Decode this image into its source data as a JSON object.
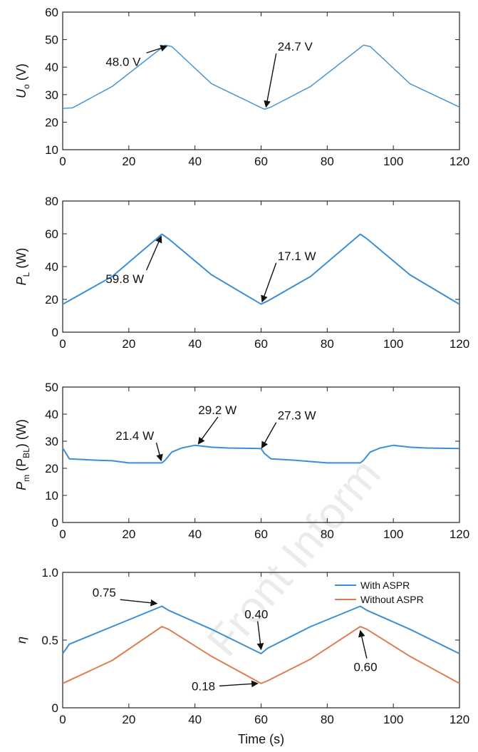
{
  "watermark": "Front Inform",
  "colors": {
    "with_aspr": "#3a8fd6",
    "without_aspr": "#e07d50",
    "axis": "#222222"
  },
  "chart_data": [
    {
      "type": "line",
      "ylabel_main": "U",
      "ylabel_sub": "o",
      "ylabel_unit": " (V)",
      "xlim": [
        0,
        120
      ],
      "ylim": [
        10,
        60
      ],
      "xticks": [
        0,
        20,
        40,
        60,
        80,
        100,
        120
      ],
      "yticks": [
        10,
        20,
        30,
        40,
        50,
        60
      ],
      "series": [
        {
          "color_key": "with_aspr",
          "points": [
            [
              0,
              25
            ],
            [
              3,
              25.2
            ],
            [
              15,
              33
            ],
            [
              31,
              48
            ],
            [
              33,
              47.5
            ],
            [
              45,
              34
            ],
            [
              61,
              24.7
            ],
            [
              63,
              25.5
            ],
            [
              75,
              33
            ],
            [
              91,
              48
            ],
            [
              93,
              47.5
            ],
            [
              105,
              34
            ],
            [
              120,
              25.5
            ]
          ]
        }
      ],
      "annotations": [
        {
          "text": "48.0 V",
          "tx": 13,
          "ty": 40.5,
          "ax": 31.5,
          "ay": 47.6
        },
        {
          "text": "24.7 V",
          "tx": 65,
          "ty": 46,
          "ax": 61.5,
          "ay": 25.5
        }
      ]
    },
    {
      "type": "line",
      "ylabel_main": "P",
      "ylabel_sub": "L",
      "ylabel_unit": " (W)",
      "xlim": [
        0,
        120
      ],
      "ylim": [
        0,
        80
      ],
      "xticks": [
        0,
        20,
        40,
        60,
        80,
        100,
        120
      ],
      "yticks": [
        0,
        20,
        40,
        60,
        80
      ],
      "series": [
        {
          "color_key": "with_aspr",
          "points": [
            [
              0,
              17
            ],
            [
              15,
              34
            ],
            [
              30,
              59.8
            ],
            [
              32,
              57
            ],
            [
              45,
              35
            ],
            [
              60,
              17.1
            ],
            [
              62,
              19
            ],
            [
              75,
              34
            ],
            [
              90,
              59.8
            ],
            [
              92,
              57
            ],
            [
              105,
              35
            ],
            [
              120,
              17
            ]
          ]
        }
      ],
      "annotations": [
        {
          "text": "59.8 W",
          "tx": 13,
          "ty": 30,
          "ax": 29.8,
          "ay": 58.5
        },
        {
          "text": "17.1 W",
          "tx": 65,
          "ty": 44,
          "ax": 60.3,
          "ay": 18.5
        }
      ]
    },
    {
      "type": "line",
      "ylabel_main": "P",
      "ylabel_sub": "m",
      "ylabel_unit": " (P",
      "ylabel_sub2": "BL",
      "ylabel_unit2": ") (W)",
      "xlim": [
        0,
        120
      ],
      "ylim": [
        0,
        50
      ],
      "xticks": [
        0,
        20,
        40,
        60,
        80,
        100,
        120
      ],
      "yticks": [
        0,
        10,
        20,
        30,
        40,
        50
      ],
      "series": [
        {
          "color_key": "with_aspr",
          "points": [
            [
              0,
              27.5
            ],
            [
              2,
              23.5
            ],
            [
              10,
              23
            ],
            [
              15,
              22.8
            ],
            [
              20,
              22
            ],
            [
              25,
              22
            ],
            [
              30,
              22
            ],
            [
              31,
              23
            ],
            [
              33,
              26
            ],
            [
              36,
              27.5
            ],
            [
              40,
              28.5
            ],
            [
              45,
              27.8
            ],
            [
              50,
              27.5
            ],
            [
              60,
              27.3
            ],
            [
              61,
              25.5
            ],
            [
              63,
              23.5
            ],
            [
              70,
              23
            ],
            [
              80,
              22
            ],
            [
              90,
              22
            ],
            [
              91,
              23
            ],
            [
              93,
              26
            ],
            [
              96,
              27.5
            ],
            [
              100,
              28.5
            ],
            [
              105,
              27.8
            ],
            [
              110,
              27.5
            ],
            [
              120,
              27.3
            ]
          ]
        }
      ],
      "annotations": [
        {
          "text": "21.4 W",
          "tx": 16,
          "ty": 30.5,
          "ax": 29.8,
          "ay": 22.8
        },
        {
          "text": "29.2 W",
          "tx": 41,
          "ty": 40,
          "ax": 41,
          "ay": 29
        },
        {
          "text": "27.3 W",
          "tx": 65,
          "ty": 38,
          "ax": 60.2,
          "ay": 27.5
        }
      ]
    },
    {
      "type": "line",
      "ylabel_main": "η",
      "ylabel_sub": "",
      "ylabel_unit": "",
      "xlim": [
        0,
        120
      ],
      "ylim": [
        0,
        1.0
      ],
      "xticks": [
        0,
        20,
        40,
        60,
        80,
        100,
        120
      ],
      "yticks": [
        0,
        0.5,
        1.0
      ],
      "ytick_labels": [
        "0",
        "0.5",
        "1.0"
      ],
      "xlabel": "Time (s)",
      "legend": [
        {
          "name": "With ASPR",
          "color_key": "with_aspr"
        },
        {
          "name": "Without ASPR",
          "color_key": "without_aspr"
        }
      ],
      "series": [
        {
          "name": "With ASPR",
          "color_key": "with_aspr",
          "points": [
            [
              0,
              0.4
            ],
            [
              2,
              0.47
            ],
            [
              15,
              0.6
            ],
            [
              30,
              0.75
            ],
            [
              32,
              0.72
            ],
            [
              45,
              0.58
            ],
            [
              60,
              0.4
            ],
            [
              62,
              0.44
            ],
            [
              75,
              0.6
            ],
            [
              90,
              0.75
            ],
            [
              92,
              0.72
            ],
            [
              105,
              0.58
            ],
            [
              120,
              0.4
            ]
          ]
        },
        {
          "name": "Without ASPR",
          "color_key": "without_aspr",
          "points": [
            [
              0,
              0.18
            ],
            [
              15,
              0.35
            ],
            [
              30,
              0.6
            ],
            [
              32,
              0.58
            ],
            [
              45,
              0.38
            ],
            [
              60,
              0.18
            ],
            [
              62,
              0.2
            ],
            [
              75,
              0.36
            ],
            [
              90,
              0.6
            ],
            [
              92,
              0.58
            ],
            [
              105,
              0.38
            ],
            [
              120,
              0.18
            ]
          ]
        }
      ],
      "annotations": [
        {
          "text": "0.75",
          "tx": 9,
          "ty": 0.82,
          "ax": 28.5,
          "ay": 0.77
        },
        {
          "text": "0.40",
          "tx": 55,
          "ty": 0.66,
          "ax": 60,
          "ay": 0.43
        },
        {
          "text": "0.60",
          "tx": 88,
          "ty": 0.27,
          "ax": 90,
          "ay": 0.57
        },
        {
          "text": "0.18",
          "tx": 39,
          "ty": 0.13,
          "ax": 59,
          "ay": 0.18
        }
      ]
    }
  ]
}
